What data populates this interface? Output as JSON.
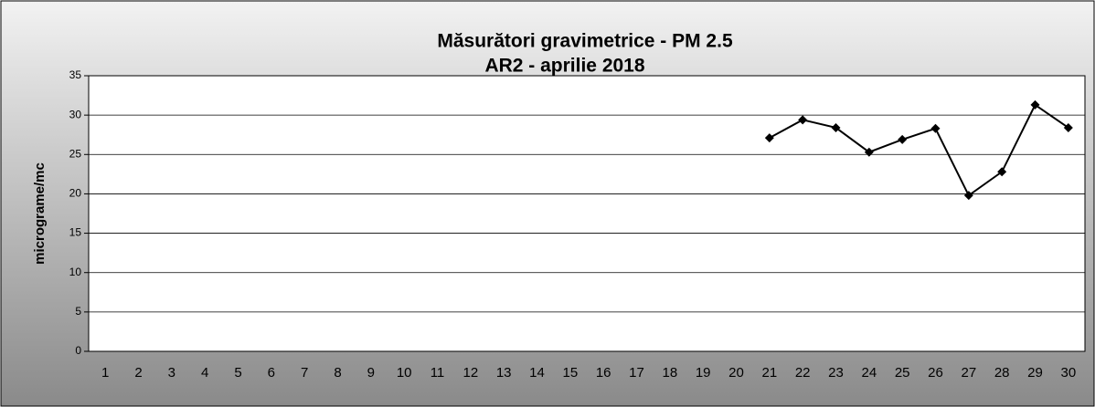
{
  "chart_data": {
    "type": "line",
    "title": "Măsurători gravimetrice - PM 2.5",
    "subtitle": "AR2 - aprilie 2018",
    "y_label": "micrograme/mc",
    "categories": [
      "1",
      "2",
      "3",
      "4",
      "5",
      "6",
      "7",
      "8",
      "9",
      "10",
      "11",
      "12",
      "13",
      "14",
      "15",
      "16",
      "17",
      "18",
      "19",
      "20",
      "21",
      "22",
      "23",
      "24",
      "25",
      "26",
      "27",
      "28",
      "29",
      "30"
    ],
    "series": [
      {
        "name": "PM 2.5",
        "color": "#000000",
        "values": [
          null,
          null,
          null,
          null,
          null,
          null,
          null,
          null,
          null,
          null,
          null,
          null,
          null,
          null,
          null,
          null,
          null,
          null,
          null,
          null,
          27.1,
          29.4,
          28.4,
          25.3,
          26.9,
          28.3,
          19.8,
          22.8,
          31.3,
          28.4
        ]
      }
    ],
    "ylim": [
      0,
      35
    ],
    "yticks": [
      0,
      5,
      10,
      15,
      20,
      25,
      30,
      35
    ],
    "grid": true
  }
}
